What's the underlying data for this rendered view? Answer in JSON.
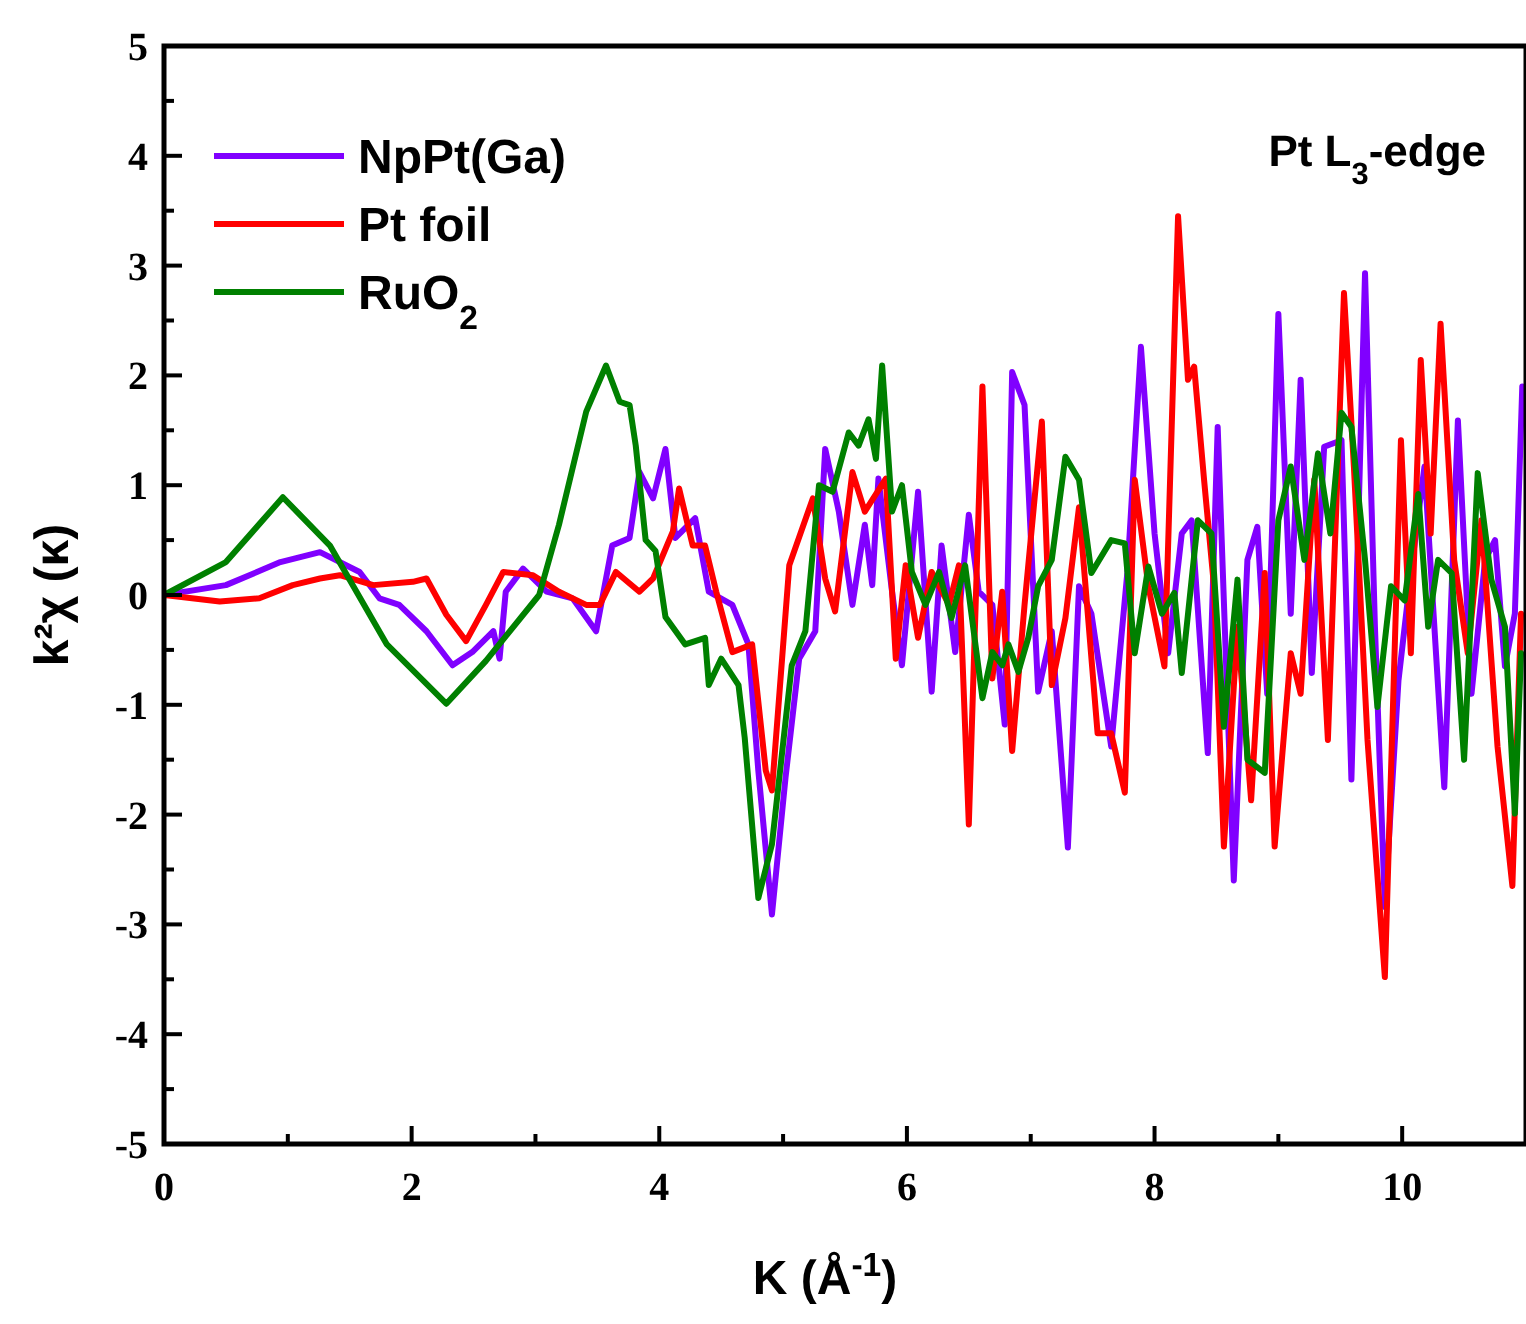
{
  "chart_data": {
    "type": "line",
    "xlabel": "K (Å$^{-1}$)",
    "ylabel": "k²χ (κ)",
    "annotations": [
      "Pt L$_{3}$-edge"
    ],
    "xlim": [
      0,
      11
    ],
    "ylim": [
      -5,
      5
    ],
    "xticks": [
      0,
      {
        "value": 1,
        "label": null
      },
      2,
      {
        "value": 3,
        "label": null
      },
      4,
      {
        "value": 5,
        "label": null
      },
      6,
      {
        "value": 7,
        "label": null
      },
      8,
      {
        "value": 9,
        "label": null
      },
      10
    ],
    "yticks": [
      -5,
      {
        "value": -4.5,
        "label": null
      },
      -4,
      {
        "value": -3.5,
        "label": null
      },
      -3,
      {
        "value": -2.5,
        "label": null
      },
      -2,
      {
        "value": -1.5,
        "label": null
      },
      -1,
      {
        "value": -0.5,
        "label": null
      },
      0,
      {
        "value": 0.5,
        "label": null
      },
      1,
      {
        "value": 1.5,
        "label": null
      },
      2,
      {
        "value": 2.5,
        "label": null
      },
      3,
      {
        "value": 3.5,
        "label": null
      },
      4,
      {
        "value": 4.5,
        "label": null
      },
      5
    ],
    "legend": "top left",
    "grid": false,
    "line_style": "solid",
    "marker": "none",
    "series": [
      {
        "name": "NpPt(Ga)",
        "color": "#8000ff",
        "x": [
          0,
          0.5,
          0.94,
          1.26,
          1.58,
          1.74,
          1.9,
          2.12,
          2.33,
          2.49,
          2.66,
          2.71,
          2.76,
          2.9,
          3.09,
          3.3,
          3.49,
          3.62,
          3.76,
          3.84,
          3.95,
          4.05,
          4.13,
          4.29,
          4.4,
          4.59,
          4.72,
          4.8,
          4.91,
          5.02,
          5.13,
          5.26,
          5.34,
          5.45,
          5.56,
          5.66,
          5.72,
          5.77,
          5.88,
          5.96,
          6.09,
          6.2,
          6.28,
          6.39,
          6.5,
          6.58,
          6.69,
          6.79,
          6.85,
          6.95,
          7.06,
          7.17,
          7.3,
          7.39,
          7.49,
          7.65,
          7.78,
          7.89,
          8.0,
          8.11,
          8.22,
          8.3,
          8.43,
          8.51,
          8.64,
          8.75,
          8.83,
          8.91,
          9.0,
          9.1,
          9.18,
          9.27,
          9.37,
          9.51,
          9.59,
          9.7,
          9.78,
          9.86,
          9.97,
          10.07,
          10.18,
          10.34,
          10.45,
          10.56,
          10.67,
          10.75,
          10.83,
          10.91,
          10.97
        ],
        "values": [
          0,
          0.09,
          0.3,
          0.39,
          0.21,
          -0.03,
          -0.09,
          -0.33,
          -0.64,
          -0.52,
          -0.33,
          -0.58,
          0.03,
          0.24,
          0.03,
          -0.03,
          -0.33,
          0.45,
          0.52,
          1.12,
          0.88,
          1.33,
          0.52,
          0.7,
          0.03,
          -0.09,
          -0.45,
          -1.6,
          -2.91,
          -1.66,
          -0.58,
          -0.33,
          1.33,
          0.76,
          -0.09,
          0.64,
          0.09,
          1.06,
          0.03,
          -0.64,
          0.94,
          -0.88,
          0.45,
          -0.52,
          0.73,
          0.03,
          -0.09,
          -1.18,
          2.03,
          1.73,
          -0.88,
          -0.33,
          -2.3,
          0.08,
          -0.17,
          -1.38,
          0.2,
          2.26,
          0.56,
          -0.53,
          0.56,
          0.68,
          -1.44,
          1.53,
          -2.6,
          0.32,
          0.62,
          -0.9,
          2.56,
          -0.17,
          1.96,
          -0.71,
          1.35,
          1.41,
          -1.68,
          2.93,
          -0.29,
          -2.84,
          -0.78,
          0.2,
          1.17,
          -1.75,
          1.59,
          -0.9,
          0.32,
          0.5,
          -0.65,
          -0.17,
          1.9
        ]
      },
      {
        "name": "Pt foil",
        "color": "#ff0000",
        "x": [
          0,
          0.45,
          0.77,
          1.04,
          1.26,
          1.42,
          1.69,
          2.01,
          2.12,
          2.28,
          2.44,
          2.6,
          2.74,
          2.98,
          3.19,
          3.41,
          3.52,
          3.65,
          3.84,
          3.95,
          4.11,
          4.16,
          4.27,
          4.37,
          4.46,
          4.59,
          4.75,
          4.86,
          4.91,
          5.05,
          5.24,
          5.34,
          5.42,
          5.56,
          5.66,
          5.83,
          5.91,
          5.99,
          6.09,
          6.2,
          6.34,
          6.42,
          6.5,
          6.61,
          6.69,
          6.77,
          6.85,
          6.95,
          7.09,
          7.17,
          7.28,
          7.39,
          7.54,
          7.65,
          7.76,
          7.84,
          7.95,
          8.08,
          8.19,
          8.27,
          8.32,
          8.4,
          8.48,
          8.56,
          8.67,
          8.78,
          8.89,
          8.97,
          9.1,
          9.18,
          9.29,
          9.4,
          9.53,
          9.61,
          9.72,
          9.86,
          9.99,
          10.07,
          10.15,
          10.23,
          10.31,
          10.42,
          10.53,
          10.64,
          10.77,
          10.89,
          10.96
        ],
        "values": [
          0,
          -0.06,
          -0.03,
          0.09,
          0.15,
          0.18,
          0.09,
          0.12,
          0.15,
          -0.18,
          -0.42,
          -0.09,
          0.21,
          0.18,
          0.03,
          -0.09,
          -0.09,
          0.21,
          0.03,
          0.15,
          0.58,
          0.97,
          0.45,
          0.45,
          0.03,
          -0.52,
          -0.45,
          -1.6,
          -1.78,
          0.27,
          0.88,
          0.15,
          -0.15,
          1.12,
          0.76,
          1.06,
          -0.58,
          0.27,
          -0.39,
          0.21,
          -0.09,
          0.27,
          -2.09,
          1.9,
          -0.76,
          0.03,
          -1.42,
          -0.09,
          1.58,
          -0.82,
          -0.21,
          0.8,
          -1.26,
          -1.26,
          -1.8,
          1.05,
          0.08,
          -0.65,
          3.45,
          1.96,
          2.08,
          1.05,
          0.08,
          -2.29,
          -0.29,
          -1.87,
          0.2,
          -2.29,
          -0.53,
          -0.9,
          1.05,
          -1.32,
          2.75,
          1.17,
          -1.32,
          -3.48,
          1.41,
          -0.53,
          2.14,
          0.56,
          2.47,
          0.32,
          -0.53,
          0.68,
          -1.38,
          -2.65,
          -0.17
        ]
      },
      {
        "name": "RuO$_{2}$",
        "color": "#008000",
        "x": [
          0,
          0.5,
          0.96,
          1.34,
          1.8,
          2.28,
          2.6,
          3.03,
          3.19,
          3.41,
          3.57,
          3.68,
          3.76,
          3.81,
          3.89,
          3.97,
          4.05,
          4.21,
          4.37,
          4.4,
          4.5,
          4.64,
          4.69,
          4.8,
          4.91,
          5.07,
          5.18,
          5.29,
          5.4,
          5.53,
          5.61,
          5.69,
          5.75,
          5.8,
          5.88,
          5.96,
          6.04,
          6.15,
          6.26,
          6.36,
          6.47,
          6.61,
          6.69,
          6.77,
          6.82,
          6.9,
          6.98,
          7.06,
          7.17,
          7.28,
          7.39,
          7.49,
          7.65,
          7.76,
          7.84,
          7.95,
          8.06,
          8.16,
          8.22,
          8.35,
          8.46,
          8.56,
          8.67,
          8.75,
          8.89,
          9.0,
          9.1,
          9.21,
          9.32,
          9.42,
          9.51,
          9.59,
          9.7,
          9.8,
          9.91,
          10.02,
          10.13,
          10.21,
          10.29,
          10.4,
          10.5,
          10.61,
          10.72,
          10.83,
          10.91,
          10.96
        ],
        "values": [
          0,
          0.3,
          0.89,
          0.45,
          -0.45,
          -0.99,
          -0.6,
          0,
          0.64,
          1.67,
          2.09,
          1.76,
          1.73,
          1.36,
          0.5,
          0.4,
          -0.2,
          -0.45,
          -0.39,
          -0.82,
          -0.58,
          -0.82,
          -1.3,
          -2.76,
          -2.27,
          -0.64,
          -0.33,
          1.0,
          0.94,
          1.48,
          1.36,
          1.6,
          1.24,
          2.09,
          0.76,
          1.0,
          0.21,
          -0.09,
          0.21,
          -0.21,
          0.27,
          -0.94,
          -0.52,
          -0.64,
          -0.45,
          -0.7,
          -0.39,
          0.08,
          0.32,
          1.26,
          1.05,
          0.2,
          0.5,
          0.47,
          -0.53,
          0.26,
          -0.17,
          0.02,
          -0.71,
          0.68,
          0.56,
          -1.2,
          0.14,
          -1.5,
          -1.62,
          0.68,
          1.17,
          0.32,
          1.29,
          0.56,
          1.66,
          1.53,
          0.32,
          -1.02,
          0.08,
          -0.05,
          0.92,
          -0.29,
          0.32,
          0.2,
          -1.5,
          1.11,
          0.14,
          -0.29,
          -1.99,
          -0.53
        ]
      }
    ]
  }
}
